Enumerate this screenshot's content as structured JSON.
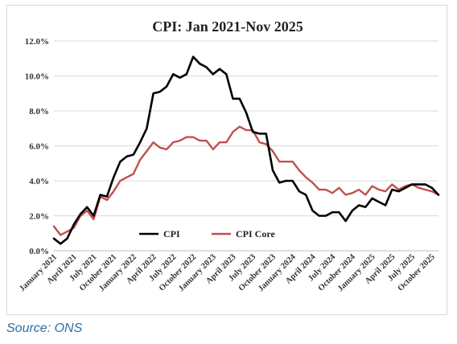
{
  "source_text": "Source: ONS",
  "chart_data": {
    "type": "line",
    "title": "CPI: Jan 2021-Nov 2025",
    "xlabel": "",
    "ylabel": "",
    "ylim": [
      0,
      12
    ],
    "y_ticks": [
      "0.0%",
      "2.0%",
      "4.0%",
      "6.0%",
      "8.0%",
      "10.0%",
      "12.0%"
    ],
    "x_tick_labels": [
      "January 2021",
      "April 2021",
      "July 2021",
      "October 2021",
      "January 2022",
      "April 2022",
      "July 2022",
      "October 2022",
      "January 2023",
      "April 2023",
      "July 2023",
      "October 2023",
      "January 2024",
      "April 2024",
      "July 2024",
      "October 2024",
      "January 2025",
      "April 2025",
      "July 2025",
      "October 2025"
    ],
    "x_start": "January 2021",
    "x_end": "November 2025",
    "legend_position": "bottom-left inside plot",
    "grid": "horizontal",
    "series": [
      {
        "name": "CPI",
        "color": "#000000",
        "values": [
          0.7,
          0.4,
          0.7,
          1.5,
          2.1,
          2.5,
          2.0,
          3.2,
          3.1,
          4.2,
          5.1,
          5.4,
          5.5,
          6.2,
          7.0,
          9.0,
          9.1,
          9.4,
          10.1,
          9.9,
          10.1,
          11.1,
          10.7,
          10.5,
          10.1,
          10.4,
          10.1,
          8.7,
          8.7,
          7.9,
          6.8,
          6.7,
          6.7,
          4.6,
          3.9,
          4.0,
          4.0,
          3.4,
          3.2,
          2.3,
          2.0,
          2.0,
          2.2,
          2.2,
          1.7,
          2.3,
          2.6,
          2.5,
          3.0,
          2.8,
          2.6,
          3.5,
          3.4,
          3.6,
          3.8,
          3.8,
          3.8,
          3.6,
          3.2
        ]
      },
      {
        "name": "CPI Core",
        "color": "#c0504d",
        "values": [
          1.4,
          0.9,
          1.1,
          1.3,
          2.0,
          2.3,
          1.8,
          3.1,
          2.9,
          3.4,
          4.0,
          4.2,
          4.4,
          5.2,
          5.7,
          6.2,
          5.9,
          5.8,
          6.2,
          6.3,
          6.5,
          6.5,
          6.3,
          6.3,
          5.8,
          6.2,
          6.2,
          6.8,
          7.1,
          6.9,
          6.9,
          6.2,
          6.1,
          5.7,
          5.1,
          5.1,
          5.1,
          4.6,
          4.2,
          3.9,
          3.5,
          3.5,
          3.3,
          3.6,
          3.2,
          3.3,
          3.5,
          3.2,
          3.7,
          3.5,
          3.4,
          3.8,
          3.5,
          3.7,
          3.8,
          3.6,
          3.5,
          3.4,
          3.2
        ]
      }
    ]
  }
}
